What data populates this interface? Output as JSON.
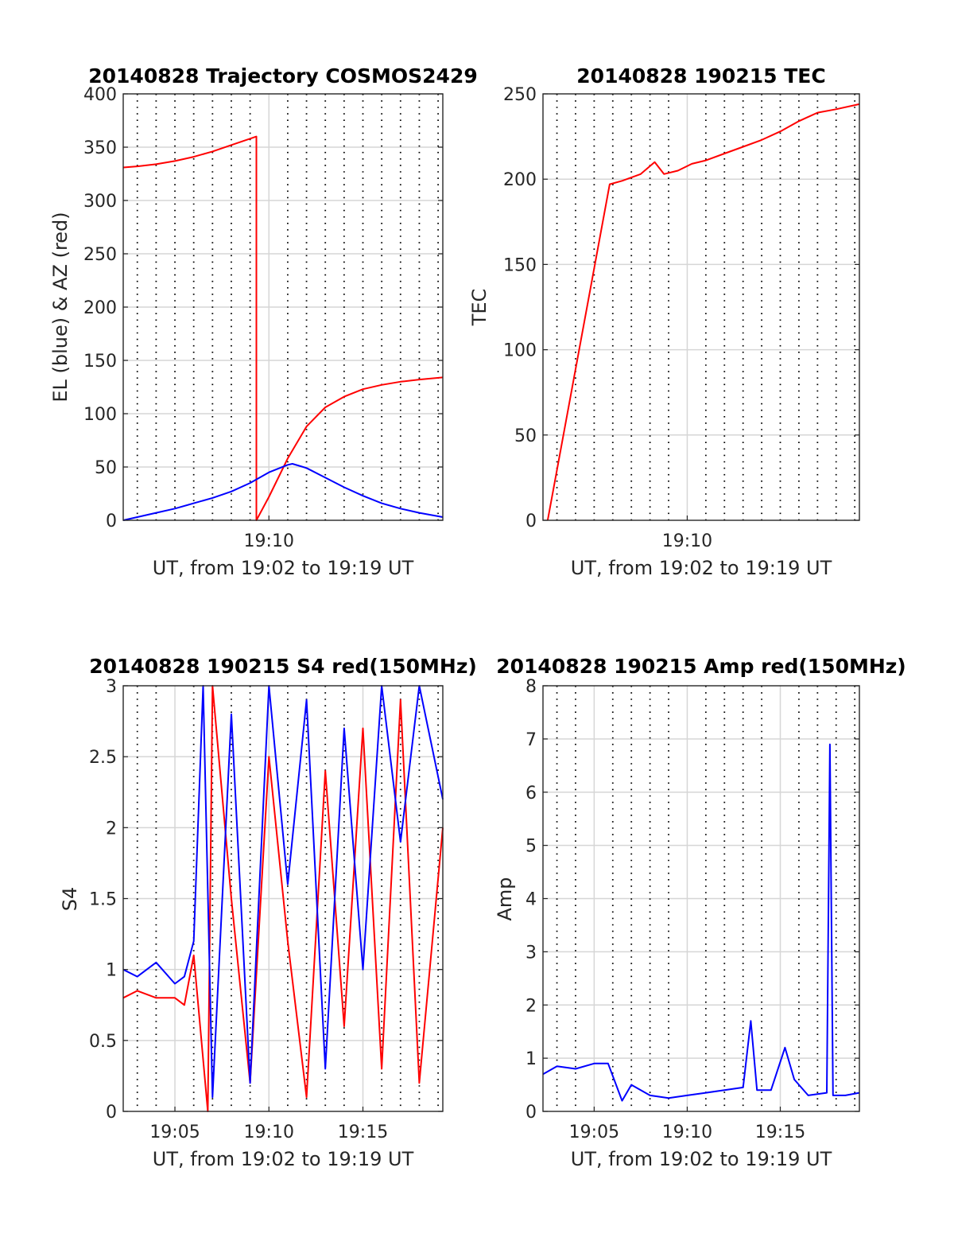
{
  "colors": {
    "red": "#ff0000",
    "blue": "#0000ff",
    "grid": "#d6d6d6",
    "frame": "#262626"
  },
  "chart_data": [
    {
      "type": "line",
      "title": "20140828 Trajectory COSMOS2429",
      "xlabel": "UT, from 19:02 to 19:19 UT",
      "ylabel": "EL (blue) & AZ (red)",
      "xlim": [
        "19:02:15",
        "19:19:15"
      ],
      "ylim": [
        0,
        400
      ],
      "yticks": [
        0,
        50,
        100,
        150,
        200,
        250,
        300,
        350,
        400
      ],
      "xticks": [
        {
          "t": "19:10",
          "label": "19:10"
        }
      ],
      "dotted_minute_lines": [
        "19:03",
        "19:04",
        "19:05",
        "19:06",
        "19:07",
        "19:08",
        "19:09",
        "19:11",
        "19:12",
        "19:13",
        "19:14",
        "19:15",
        "19:16",
        "19:17",
        "19:18",
        "19:19"
      ],
      "grid": true,
      "series": [
        {
          "color": "red",
          "x": [
            "19:02:15",
            "19:03:00",
            "19:04:00",
            "19:05:00",
            "19:06:00",
            "19:07:00",
            "19:08:00",
            "19:09:00",
            "19:09:20",
            "19:09:20",
            "19:10:00",
            "19:11:00",
            "19:12:00",
            "19:13:00",
            "19:14:00",
            "19:15:00",
            "19:16:00",
            "19:17:00",
            "19:18:00",
            "19:19:15"
          ],
          "values": [
            331,
            332,
            334,
            337,
            341,
            346,
            352,
            358,
            360,
            0,
            22,
            58,
            88,
            106,
            116,
            123,
            127,
            130,
            132,
            134
          ]
        },
        {
          "color": "blue",
          "x": [
            "19:02:15",
            "19:03:00",
            "19:04:00",
            "19:05:00",
            "19:06:00",
            "19:07:00",
            "19:08:00",
            "19:09:00",
            "19:10:00",
            "19:11:00",
            "19:11:15",
            "19:12:00",
            "19:13:00",
            "19:14:00",
            "19:15:00",
            "19:16:00",
            "19:17:00",
            "19:18:00",
            "19:19:15"
          ],
          "values": [
            0,
            3,
            7,
            11,
            16,
            21,
            27,
            35,
            45,
            52,
            53,
            49,
            40,
            31,
            23,
            16,
            11,
            7,
            3
          ]
        }
      ]
    },
    {
      "type": "line",
      "title": "20140828 190215 TEC",
      "xlabel": "UT, from 19:02 to 19:19 UT",
      "ylabel": "TEC",
      "xlim": [
        "19:02:15",
        "19:19:15"
      ],
      "ylim": [
        0,
        250
      ],
      "yticks": [
        0,
        50,
        100,
        150,
        200,
        250
      ],
      "xticks": [
        {
          "t": "19:10",
          "label": "19:10"
        }
      ],
      "dotted_minute_lines": [
        "19:03",
        "19:04",
        "19:05",
        "19:06",
        "19:07",
        "19:08",
        "19:09",
        "19:11",
        "19:12",
        "19:13",
        "19:14",
        "19:15",
        "19:16",
        "19:17",
        "19:18",
        "19:19"
      ],
      "grid": true,
      "series": [
        {
          "color": "red",
          "x": [
            "19:02:30",
            "19:05:50",
            "19:06:30",
            "19:07:30",
            "19:08:15",
            "19:08:45",
            "19:09:30",
            "19:10:15",
            "19:11:00",
            "19:12:00",
            "19:13:00",
            "19:14:00",
            "19:15:00",
            "19:16:00",
            "19:17:00",
            "19:18:00",
            "19:19:15"
          ],
          "values": [
            0,
            197,
            199,
            203,
            210,
            203,
            205,
            209,
            211,
            215,
            219,
            223,
            228,
            234,
            239,
            241,
            244
          ]
        }
      ]
    },
    {
      "type": "line",
      "title": "20140828 190215 S4 red(150MHz)",
      "xlabel": "UT, from 19:02 to 19:19 UT",
      "ylabel": "S4",
      "xlim": [
        "19:02:15",
        "19:19:15"
      ],
      "ylim": [
        0,
        3
      ],
      "yticks": [
        0,
        0.5,
        1,
        1.5,
        2,
        2.5,
        3
      ],
      "xticks": [
        {
          "t": "19:05",
          "label": "19:05"
        },
        {
          "t": "19:10",
          "label": "19:10"
        },
        {
          "t": "19:15",
          "label": "19:15"
        }
      ],
      "dotted_minute_lines": [
        "19:03",
        "19:04",
        "19:06",
        "19:07",
        "19:08",
        "19:09",
        "19:11",
        "19:12",
        "19:13",
        "19:14",
        "19:16",
        "19:17",
        "19:18",
        "19:19"
      ],
      "grid": true,
      "series": [
        {
          "color": "red",
          "x": [
            "19:02:15",
            "19:03:00",
            "19:04:00",
            "19:05:00",
            "19:05:30",
            "19:06:00",
            "19:06:45",
            "19:07:00",
            "19:08:00",
            "19:09:00",
            "19:10:00",
            "19:11:00",
            "19:12:00",
            "19:13:00",
            "19:14:00",
            "19:15:00",
            "19:16:00",
            "19:17:00",
            "19:18:00",
            "19:19:15"
          ],
          "values": [
            0.8,
            0.85,
            0.8,
            0.8,
            0.75,
            1.1,
            0.0,
            3.0,
            1.5,
            0.2,
            2.5,
            1.2,
            0.1,
            2.4,
            0.6,
            2.7,
            0.3,
            2.9,
            0.2,
            2.0
          ]
        },
        {
          "color": "blue",
          "x": [
            "19:02:15",
            "19:03:00",
            "19:04:00",
            "19:05:00",
            "19:05:30",
            "19:06:00",
            "19:06:30",
            "19:07:00",
            "19:08:00",
            "19:09:00",
            "19:10:00",
            "19:11:00",
            "19:12:00",
            "19:13:00",
            "19:14:00",
            "19:15:00",
            "19:16:00",
            "19:17:00",
            "19:18:00",
            "19:19:15"
          ],
          "values": [
            1.0,
            0.95,
            1.05,
            0.9,
            0.95,
            1.2,
            3.0,
            0.1,
            2.8,
            0.2,
            3.0,
            1.6,
            2.9,
            0.3,
            2.7,
            1.0,
            3.0,
            1.9,
            3.0,
            2.2
          ]
        }
      ]
    },
    {
      "type": "line",
      "title": "20140828 190215 Amp red(150MHz)",
      "xlabel": "UT, from 19:02 to 19:19 UT",
      "ylabel": "Amp",
      "xlim": [
        "19:02:15",
        "19:19:15"
      ],
      "ylim": [
        0,
        8
      ],
      "yticks": [
        0,
        1,
        2,
        3,
        4,
        5,
        6,
        7,
        8
      ],
      "xticks": [
        {
          "t": "19:05",
          "label": "19:05"
        },
        {
          "t": "19:10",
          "label": "19:10"
        },
        {
          "t": "19:15",
          "label": "19:15"
        }
      ],
      "dotted_minute_lines": [
        "19:03",
        "19:04",
        "19:06",
        "19:07",
        "19:08",
        "19:09",
        "19:11",
        "19:12",
        "19:13",
        "19:14",
        "19:16",
        "19:17",
        "19:18",
        "19:19"
      ],
      "grid": true,
      "series": [
        {
          "color": "blue",
          "x": [
            "19:02:15",
            "19:03:00",
            "19:04:00",
            "19:05:00",
            "19:05:45",
            "19:06:30",
            "19:07:00",
            "19:08:00",
            "19:09:00",
            "19:10:00",
            "19:11:00",
            "19:12:00",
            "19:13:00",
            "19:13:25",
            "19:13:45",
            "19:14:30",
            "19:15:15",
            "19:15:45",
            "19:16:30",
            "19:17:30",
            "19:17:40",
            "19:17:50",
            "19:18:30",
            "19:19:15"
          ],
          "values": [
            0.7,
            0.85,
            0.8,
            0.9,
            0.9,
            0.2,
            0.5,
            0.3,
            0.25,
            0.3,
            0.35,
            0.4,
            0.45,
            1.7,
            0.4,
            0.4,
            1.2,
            0.6,
            0.3,
            0.35,
            6.9,
            0.3,
            0.3,
            0.35
          ]
        }
      ]
    }
  ]
}
